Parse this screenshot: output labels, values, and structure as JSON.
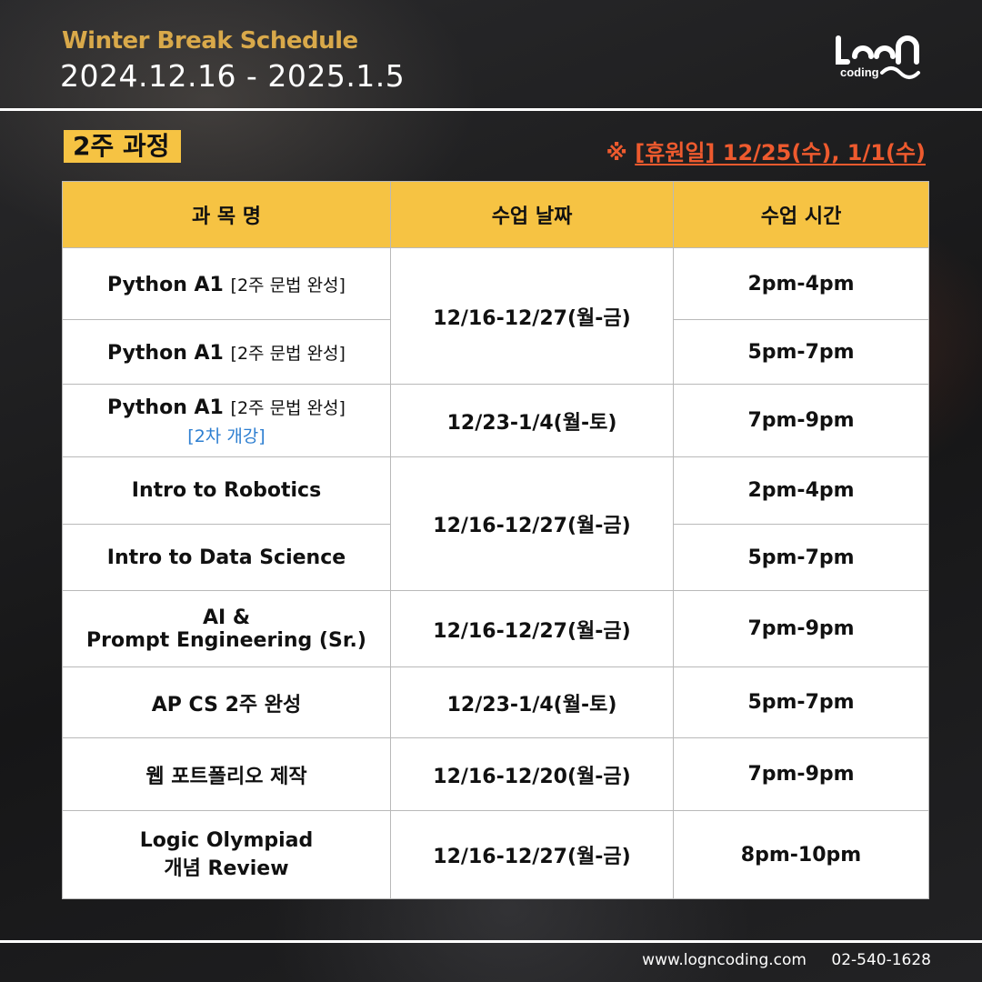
{
  "header": {
    "title": "Winter Break Schedule",
    "dates": "2024.12.16 - 2025.1.5",
    "logo_text": "coding"
  },
  "section": {
    "tag": "2주 과정",
    "holiday_mark": "※",
    "holiday_text": "[휴원일] 12/25(수), 1/1(수)"
  },
  "table": {
    "headers": [
      "과 목 명",
      "수업 날짜",
      "수업 시간"
    ],
    "rows": [
      {
        "name": "Python A1",
        "note": "[2주 문법 완성]",
        "sub": "",
        "date": "12/16-12/27(월-금)",
        "time": "2pm-4pm"
      },
      {
        "name": "Python A1",
        "note": "[2주 문법 완성]",
        "sub": "",
        "date": "",
        "time": "5pm-7pm"
      },
      {
        "name": "Python A1",
        "note": "[2주 문법 완성]",
        "sub": "[2차 개강]",
        "date": "12/23-1/4(월-토)",
        "time": "7pm-9pm"
      },
      {
        "name": "Intro to Robotics",
        "note": "",
        "sub": "",
        "date": "12/16-12/27(월-금)",
        "time": "2pm-4pm"
      },
      {
        "name": "Intro to Data Science",
        "note": "",
        "sub": "",
        "date": "",
        "time": "5pm-7pm"
      },
      {
        "name": "AI &",
        "name2": "Prompt Engineering (Sr.)",
        "date": "12/16-12/27(월-금)",
        "time": "7pm-9pm"
      },
      {
        "name": "AP CS 2주 완성",
        "date": "12/23-1/4(월-토)",
        "time": "5pm-7pm"
      },
      {
        "name": "웹 포트폴리오 제작",
        "date": "12/16-12/20(월-금)",
        "time": "7pm-9pm"
      },
      {
        "name": "Logic Olympiad",
        "name2": "개념 Review",
        "date": "12/16-12/27(월-금)",
        "time": "8pm-10pm"
      }
    ]
  },
  "footer": {
    "website": "www.logncoding.com",
    "phone": "02-540-1628"
  },
  "colors": {
    "accent": "#f6c343",
    "title_gold": "#d9a94a",
    "holiday_red": "#ee5a2e",
    "note_blue": "#2e7fd1"
  }
}
